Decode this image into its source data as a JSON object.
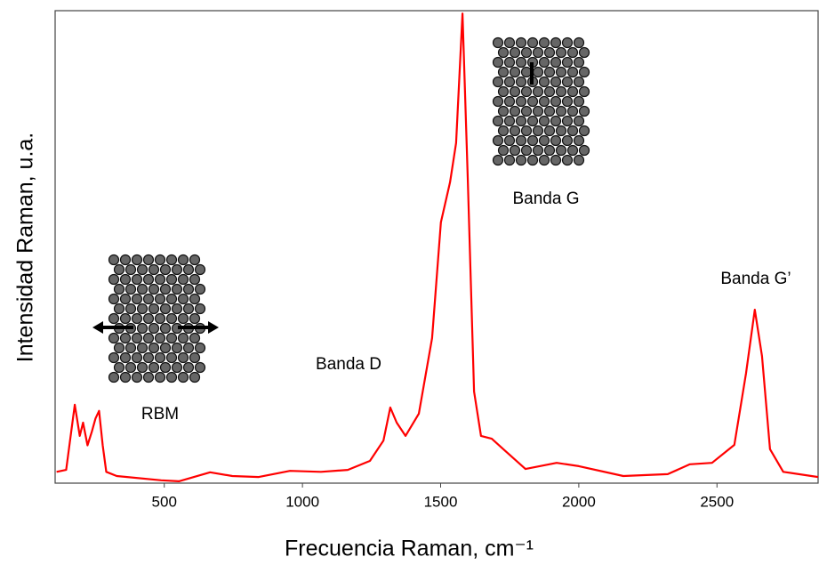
{
  "chart_data": {
    "type": "line",
    "xlabel": "Frecuencia Raman, cm⁻¹",
    "ylabel": "Intensidad Raman, u.a.",
    "annotations": [
      "RBM",
      "Banda D",
      "Banda G",
      "Banda G’"
    ],
    "xlim": [
      105,
      2866
    ],
    "ylim": [
      0,
      100
    ],
    "xticks": [
      500,
      1000,
      1500,
      2000,
      2500
    ],
    "series": [
      {
        "color": "#ff0000",
        "x": [
          110,
          145,
          176,
          194,
          206,
          222,
          238,
          251,
          264,
          277,
          290,
          328,
          489,
          553,
          666,
          746,
          842,
          955,
          1067,
          1164,
          1244,
          1293,
          1318,
          1341,
          1373,
          1421,
          1469,
          1501,
          1534,
          1556,
          1579,
          1598,
          1621,
          1646,
          1685,
          1727,
          1807,
          1920,
          2000,
          2161,
          2322,
          2402,
          2482,
          2563,
          2605,
          2637,
          2663,
          2692,
          2740,
          2866
        ],
        "values": [
          2.4,
          2.8,
          16.6,
          10,
          12.8,
          8,
          10.9,
          13.7,
          15.3,
          8,
          2.4,
          1.5,
          0.6,
          0.4,
          2.3,
          1.5,
          1.3,
          2.6,
          2.4,
          2.8,
          4.7,
          9,
          16,
          12.8,
          10,
          14.7,
          30.7,
          55.2,
          63.7,
          72,
          99.4,
          64.6,
          19.4,
          10,
          9.4,
          7.2,
          3,
          4.3,
          3.6,
          1.5,
          1.9,
          4,
          4.3,
          8.1,
          23.2,
          36.7,
          26.9,
          7.2,
          2.4,
          1.3
        ]
      }
    ]
  }
}
